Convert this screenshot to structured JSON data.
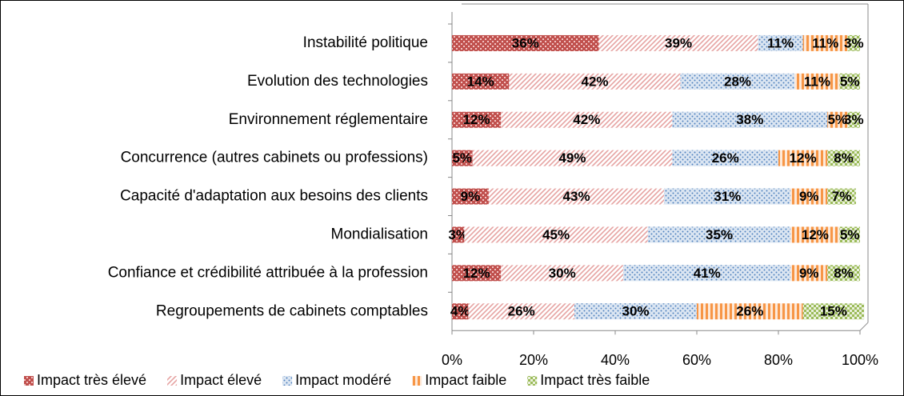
{
  "chart_data": {
    "type": "stacked-bar-horizontal",
    "categories": [
      "Instabilité politique",
      "Evolution des technologies",
      "Environnement réglementaire",
      "Concurrence (autres cabinets ou professions)",
      "Capacité d'adaptation aux besoins des clients",
      "Mondialisation",
      "Confiance et crédibilité attribuée à la profession",
      "Regroupements de cabinets comptables"
    ],
    "series": [
      {
        "name": "Impact très élevé",
        "color": "#c0504d",
        "values": [
          36,
          14,
          12,
          5,
          9,
          3,
          12,
          4
        ],
        "value_labels": [
          "36%",
          "14%",
          "12%",
          "5%",
          "9%",
          "3%",
          "12%",
          "4%"
        ]
      },
      {
        "name": "Impact élevé",
        "color": "#e6a3a2",
        "values": [
          39,
          42,
          42,
          49,
          43,
          45,
          30,
          26
        ],
        "value_labels": [
          "39%",
          "42%",
          "42%",
          "49%",
          "43%",
          "45%",
          "30%",
          "26%"
        ]
      },
      {
        "name": "Impact modéré",
        "color": "#4f81bd",
        "values": [
          11,
          28,
          38,
          26,
          31,
          35,
          41,
          30
        ],
        "value_labels": [
          "11%",
          "28%",
          "38%",
          "26%",
          "31%",
          "35%",
          "41%",
          "30%"
        ]
      },
      {
        "name": "Impact faible",
        "color": "#f79646",
        "values": [
          11,
          11,
          5,
          12,
          9,
          12,
          9,
          26
        ],
        "value_labels": [
          "11%",
          "11%",
          "5%",
          "12%",
          "9%",
          "12%",
          "9%",
          "26%"
        ]
      },
      {
        "name": "Impact très faible",
        "color": "#9bbb59",
        "values": [
          3,
          5,
          3,
          8,
          7,
          5,
          8,
          15
        ],
        "value_labels": [
          "3%",
          "5%",
          "3%",
          "8%",
          "7%",
          "5%",
          "8%",
          "15%"
        ]
      }
    ],
    "xlim": [
      0,
      100
    ],
    "xticks": [
      {
        "value": 0,
        "label": "0%"
      },
      {
        "value": 20,
        "label": "20%"
      },
      {
        "value": 40,
        "label": "40%"
      },
      {
        "value": 60,
        "label": "60%"
      },
      {
        "value": 80,
        "label": "80%"
      },
      {
        "value": 100,
        "label": "100%"
      }
    ]
  }
}
